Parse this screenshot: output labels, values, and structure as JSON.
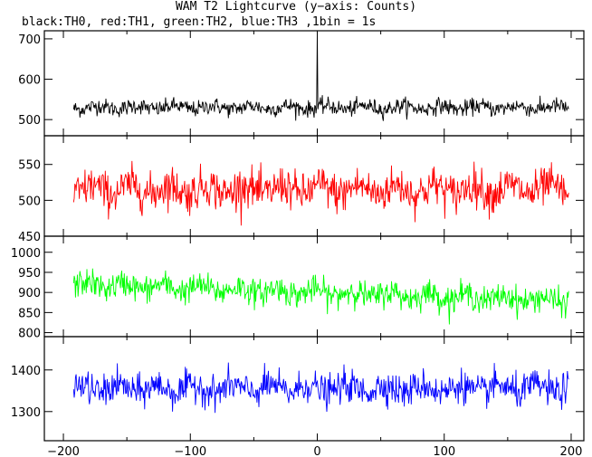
{
  "title": "WAM T2 Lightcurve (y−axis: Counts)",
  "subtitle": "black:TH0, red:TH1, green:TH2, blue:TH3 ,1bin = 1s",
  "chart_data": [
    {
      "type": "line",
      "series_name": "TH0",
      "color": "#000000",
      "xlim": [
        -215,
        210
      ],
      "ylim": [
        460,
        720
      ],
      "yticks": [
        500,
        600,
        700
      ],
      "ytick_labels": [
        "500",
        "600",
        "700"
      ],
      "mean": 530,
      "noise_std": 18,
      "spike": {
        "x": 0,
        "y": 720
      },
      "x_range": [
        -192,
        198
      ]
    },
    {
      "type": "line",
      "series_name": "TH1",
      "color": "#ff0000",
      "xlim": [
        -215,
        210
      ],
      "ylim": [
        450,
        590
      ],
      "yticks": [
        450,
        500,
        550
      ],
      "ytick_labels": [
        "450",
        "500",
        "550"
      ],
      "mean": 515,
      "noise_std": 25,
      "x_range": [
        -192,
        198
      ]
    },
    {
      "type": "line",
      "series_name": "TH2",
      "color": "#00ff00",
      "xlim": [
        -215,
        210
      ],
      "ylim": [
        790,
        1040
      ],
      "yticks": [
        800,
        850,
        900,
        950,
        1000
      ],
      "ytick_labels": [
        "800",
        "850",
        "900",
        "950",
        "1000"
      ],
      "mean_start": 920,
      "mean_end": 880,
      "noise_std": 30,
      "x_range": [
        -192,
        198
      ]
    },
    {
      "type": "line",
      "series_name": "TH3",
      "color": "#0000ff",
      "xlim": [
        -215,
        210
      ],
      "ylim": [
        1230,
        1480
      ],
      "yticks": [
        1300,
        1400
      ],
      "ytick_labels": [
        "1300",
        "1400"
      ],
      "mean": 1355,
      "noise_std": 35,
      "x_range": [
        -192,
        198
      ],
      "xticks": [
        -200,
        -100,
        0,
        100,
        200
      ],
      "xtick_labels": [
        "−200",
        "−100",
        "0",
        "100",
        "200"
      ]
    }
  ]
}
